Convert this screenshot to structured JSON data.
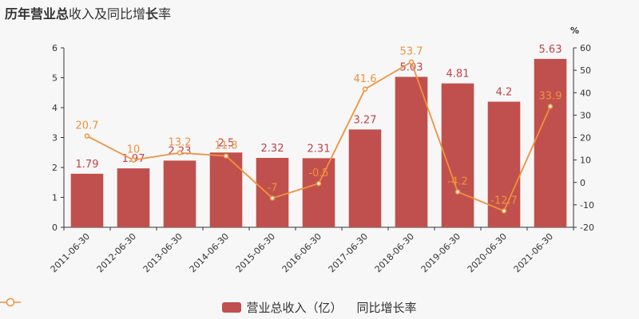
{
  "title": {
    "prefix_bold": "历年",
    "part1": "营业总",
    "part2": "收入及同比增",
    "part3_bold": "长",
    "part4": "率"
  },
  "colors": {
    "bar": "#c0504d",
    "line": "#f0913e",
    "bar_label": "#c1434a"
  },
  "chart_data": {
    "type": "bar",
    "categories": [
      "2011-06-30",
      "2012-06-30",
      "2013-06-30",
      "2014-06-30",
      "2015-06-30",
      "2016-06-30",
      "2017-06-30",
      "2018-06-30",
      "2019-06-30",
      "2020-06-30",
      "2021-06-30"
    ],
    "series": [
      {
        "name": "营业总收入（亿）",
        "type": "bar",
        "axis": "left",
        "values": [
          1.79,
          1.97,
          2.23,
          2.5,
          2.32,
          2.31,
          3.27,
          5.03,
          4.81,
          4.2,
          5.63
        ]
      },
      {
        "name": "同比增长率",
        "type": "line",
        "axis": "right",
        "values": [
          20.7,
          10,
          13.2,
          11.8,
          -7,
          -0.5,
          41.6,
          53.7,
          -4.2,
          -12.7,
          33.9
        ]
      }
    ],
    "y_left": {
      "min": 0,
      "max": 6,
      "ticks": [
        0,
        1,
        2,
        3,
        4,
        5,
        6
      ]
    },
    "y_right": {
      "min": -20,
      "max": 60,
      "ticks": [
        -20,
        -10,
        0,
        10,
        20,
        30,
        40,
        50,
        60
      ],
      "unit": "%"
    },
    "legend_position": "bottom-center",
    "grid": false
  }
}
